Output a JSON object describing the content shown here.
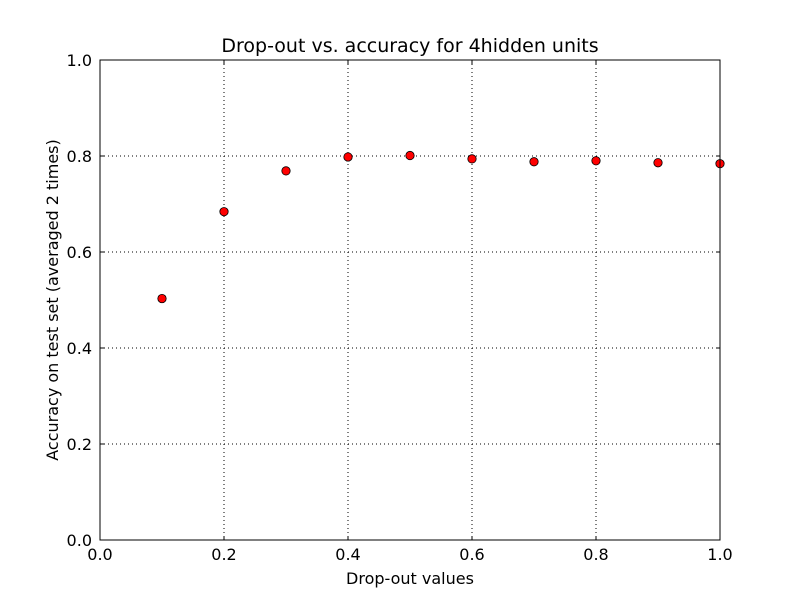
{
  "chart_data": {
    "type": "scatter",
    "title": "Drop-out vs. accuracy for 4hidden units",
    "xlabel": "Drop-out values",
    "ylabel": "Accuracy on test set (averaged 2 times)",
    "xlim": [
      0.0,
      1.0
    ],
    "ylim": [
      0.0,
      1.0
    ],
    "xticks": [
      "0.0",
      "0.2",
      "0.4",
      "0.6",
      "0.8",
      "1.0"
    ],
    "yticks": [
      "0.0",
      "0.2",
      "0.4",
      "0.6",
      "0.8",
      "1.0"
    ],
    "grid": true,
    "marker_color": "#ff0000",
    "marker_edge_color": "#000000",
    "points": [
      {
        "x": 0.1,
        "y": 0.503
      },
      {
        "x": 0.2,
        "y": 0.684
      },
      {
        "x": 0.3,
        "y": 0.769
      },
      {
        "x": 0.4,
        "y": 0.798
      },
      {
        "x": 0.5,
        "y": 0.801
      },
      {
        "x": 0.6,
        "y": 0.794
      },
      {
        "x": 0.7,
        "y": 0.788
      },
      {
        "x": 0.8,
        "y": 0.79
      },
      {
        "x": 0.9,
        "y": 0.786
      },
      {
        "x": 1.0,
        "y": 0.784
      }
    ]
  }
}
